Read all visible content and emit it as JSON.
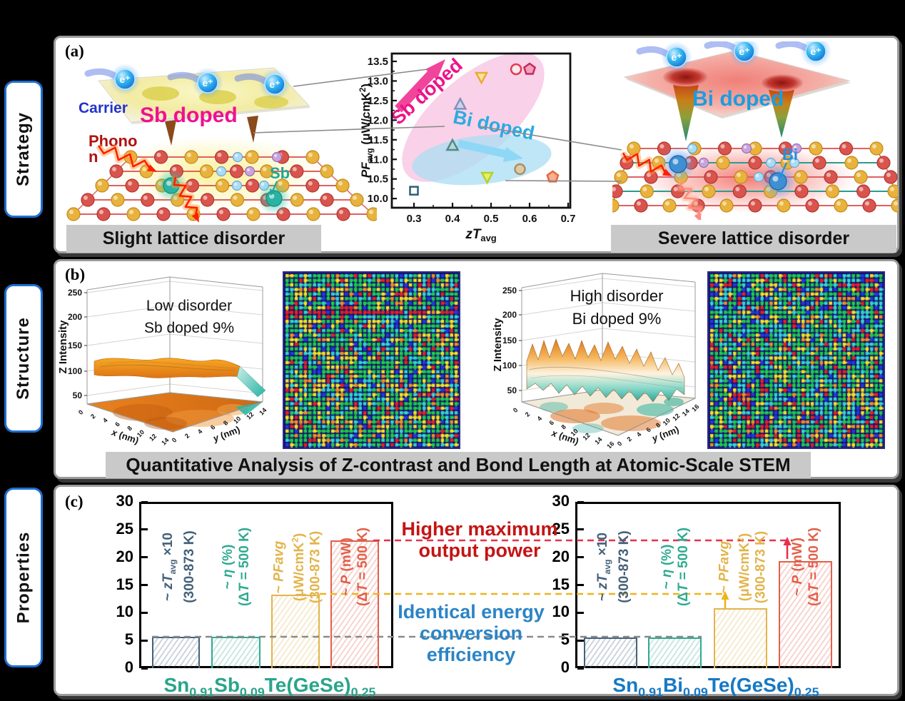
{
  "sidebar": {
    "accent": "#1d6fd1",
    "items": [
      {
        "label": "Strategy"
      },
      {
        "label": "Structure"
      },
      {
        "label": "Properties"
      }
    ]
  },
  "panel_a": {
    "tag": "(a)",
    "left": {
      "carrier": "Carrier",
      "carrier_color": "#2233cc",
      "doped": "Sb doped",
      "doped_color": "#f20f8e",
      "phonon_l1": "Phono",
      "phonon_l2": "n",
      "phonon_color": "#b01212",
      "dopant": "Sb",
      "dopant_color": "#1fa898",
      "electron": "e⁺",
      "banner": "Slight lattice disorder"
    },
    "right": {
      "doped": "Bi doped",
      "doped_color": "#1a9de0",
      "dopant": "Bi",
      "dopant_color": "#2090e0",
      "electron": "e⁺",
      "banner": "Severe lattice disorder"
    }
  },
  "panel_b": {
    "tag": "(b)",
    "banner": "Quantitative Analysis of Z-contrast and Bond Length at Atomic-Scale STEM"
  },
  "panel_c": {
    "tag": "(c)",
    "annotation_power": {
      "color": "#c41414",
      "lines": [
        "Higher maximum",
        "output power"
      ]
    },
    "annotation_efficiency": {
      "color": "#2b84c6",
      "lines": [
        "Identical energy",
        "conversion",
        "efficiency"
      ]
    }
  },
  "reference_lines": [
    {
      "value": 23.0,
      "color": "#e8304a"
    },
    {
      "value": 13.4,
      "color": "#eeb41e"
    },
    {
      "value": 5.7,
      "color": "#8a8a8a"
    }
  ],
  "chart_data": [
    {
      "id": "pf_vs_zt",
      "type": "scatter",
      "xlabel_rich": [
        {
          "t": "zT",
          "i": true
        },
        {
          "t": "avg",
          "sub": true
        }
      ],
      "ylabel_rich": [
        {
          "t": "PF",
          "i": true
        },
        {
          "t": "avg",
          "sub": true
        },
        {
          "t": " (μW/cmK"
        },
        {
          "t": "2",
          "sup": true
        },
        {
          "t": ")"
        }
      ],
      "xlim": [
        0.24,
        0.71
      ],
      "ylim": [
        9.75,
        13.7
      ],
      "grid": false,
      "xticks": [
        "0.3",
        "0.4",
        "0.5",
        "0.6",
        "0.7"
      ],
      "yticks": [
        "10.0",
        "10.5",
        "11.0",
        "11.5",
        "12.0",
        "12.5",
        "13.0",
        "13.5"
      ],
      "points": [
        {
          "x": 0.3,
          "y": 10.2,
          "shape": "square",
          "stroke": "#2e5f72",
          "fill": "#ffffff"
        },
        {
          "x": 0.4,
          "y": 11.35,
          "shape": "triangle-up",
          "stroke": "#4d8b8b",
          "fill": "#b9d6d3"
        },
        {
          "x": 0.42,
          "y": 12.4,
          "shape": "triangle-up",
          "stroke": "#8290bd",
          "fill": "#cdd4e9"
        },
        {
          "x": 0.475,
          "y": 13.1,
          "shape": "triangle-down",
          "stroke": "#eaaa3a",
          "fill": "#fbe39d"
        },
        {
          "x": 0.49,
          "y": 10.55,
          "shape": "triangle-down",
          "stroke": "#b8cf2e",
          "fill": "#e3f163"
        },
        {
          "x": 0.565,
          "y": 13.3,
          "shape": "circle",
          "stroke": "#e23a52",
          "fill": "#fbe9ec"
        },
        {
          "x": 0.6,
          "y": 13.3,
          "shape": "pentagon",
          "stroke": "#c22a5e",
          "fill": "#f2a0bd"
        },
        {
          "x": 0.575,
          "y": 10.75,
          "shape": "circle",
          "stroke": "#a98f68",
          "fill": "#e0c9a6"
        },
        {
          "x": 0.66,
          "y": 10.55,
          "shape": "pentagon",
          "stroke": "#e8643c",
          "fill": "#f8b18e"
        }
      ],
      "groups": [
        {
          "label": "Sb doped",
          "text_color": "#ee1289",
          "arrow_color": "#f0459b",
          "ellipse_color": "#f8c5e2"
        },
        {
          "label": "Bi doped",
          "text_color": "#29abe2",
          "arrow_color": "#8ed7f7",
          "ellipse_color": "#aaddf3"
        }
      ]
    },
    {
      "id": "surface_sb",
      "type": "surface",
      "disorder": "low",
      "title_lines": [
        "Low disorder",
        "Sb doped 9%"
      ],
      "zlabel": "Z Intensity",
      "z_range": [
        0,
        250
      ],
      "zticks": [
        "250",
        "200",
        "150",
        "100",
        "50"
      ],
      "xlabel_rich": [
        {
          "t": "x",
          "i": true
        },
        {
          "t": " (nm)"
        }
      ],
      "ylabel_rich": [
        {
          "t": "y",
          "i": true
        },
        {
          "t": " (nm)"
        }
      ],
      "xticks": [
        "0",
        "2",
        "4",
        "6",
        "8",
        "10",
        "12",
        "14"
      ],
      "yticks": [
        "0",
        "2",
        "4",
        "6",
        "8",
        "10",
        "12",
        "14"
      ]
    },
    {
      "id": "surface_bi",
      "type": "surface",
      "disorder": "high",
      "title_lines": [
        "High disorder",
        "Bi doped 9%"
      ],
      "zlabel": "Z Intensity",
      "z_range": [
        0,
        250
      ],
      "zticks": [
        "250",
        "200",
        "150",
        "100",
        "50"
      ],
      "xlabel_rich": [
        {
          "t": "x",
          "i": true
        },
        {
          "t": " (nm)"
        }
      ],
      "ylabel_rich": [
        {
          "t": "y",
          "i": true
        },
        {
          "t": " (nm)"
        }
      ],
      "xticks": [
        "0",
        "2",
        "4",
        "6",
        "8",
        "10",
        "12",
        "14",
        "16"
      ],
      "yticks": [
        "0",
        "2",
        "4",
        "6",
        "8",
        "10",
        "12",
        "14",
        "16"
      ]
    },
    {
      "id": "props_sb",
      "type": "bar",
      "ylim": [
        0,
        30
      ],
      "yticks": [
        "0",
        "5",
        "10",
        "15",
        "20",
        "25",
        "30"
      ],
      "category_rich": [
        {
          "t": "Sn"
        },
        {
          "t": "0.91",
          "sub": true
        },
        {
          "t": "Sb"
        },
        {
          "t": "0.09",
          "sub": true
        },
        {
          "t": "Te(GeSe)"
        },
        {
          "t": "0.25",
          "sub": true
        }
      ],
      "category_color": "#2aa58a",
      "bars": [
        {
          "value": 5.7,
          "color": "#44617a",
          "label_lines": [
            [
              {
                "t": "~ "
              },
              {
                "t": "zT",
                "i": true
              },
              {
                "t": "avg",
                "sub": true
              },
              {
                "t": " ×10"
              }
            ],
            [
              {
                "t": "(300-873 K)"
              }
            ]
          ]
        },
        {
          "value": 5.7,
          "color": "#2faa92",
          "label_lines": [
            [
              {
                "t": "~ "
              },
              {
                "t": "η",
                "i": true
              },
              {
                "t": "  (%)"
              }
            ],
            [
              {
                "t": "(Δ"
              },
              {
                "t": "T",
                "i": true
              },
              {
                "t": " = 500 K)"
              }
            ]
          ]
        },
        {
          "value": 13.3,
          "color": "#e2b44c",
          "label_lines": [
            [
              {
                "t": "~ "
              },
              {
                "t": "PF",
                "i": true
              },
              {
                "t": "avg",
                "i": true
              }
            ],
            [
              {
                "t": "(μW/cmK"
              },
              {
                "t": "2",
                "sup": true
              },
              {
                "t": ")"
              }
            ],
            [
              {
                "t": "(300-873 K)"
              }
            ]
          ]
        },
        {
          "value": 23.0,
          "color": "#e2604b",
          "label_lines": [
            [
              {
                "t": "~ "
              },
              {
                "t": "P",
                "i": true
              },
              {
                "t": " (mW)"
              }
            ],
            [
              {
                "t": "(Δ"
              },
              {
                "t": "T",
                "i": true
              },
              {
                "t": " = 500 K)"
              }
            ]
          ]
        }
      ]
    },
    {
      "id": "props_bi",
      "type": "bar",
      "ylim": [
        0,
        30
      ],
      "yticks": [
        "0",
        "5",
        "10",
        "15",
        "20",
        "25",
        "30"
      ],
      "category_rich": [
        {
          "t": "Sn"
        },
        {
          "t": "0.91",
          "sub": true
        },
        {
          "t": "Bi"
        },
        {
          "t": "0.09",
          "sub": true
        },
        {
          "t": "Te(GeSe)"
        },
        {
          "t": "0.25",
          "sub": true
        }
      ],
      "category_color": "#1779c4",
      "bars": [
        {
          "value": 5.6,
          "color": "#44617a",
          "label_lines": [
            [
              {
                "t": "~ "
              },
              {
                "t": "zT",
                "i": true
              },
              {
                "t": "avg",
                "sub": true
              },
              {
                "t": " ×10"
              }
            ],
            [
              {
                "t": "(300-873 K)"
              }
            ]
          ]
        },
        {
          "value": 5.6,
          "color": "#2faa92",
          "label_lines": [
            [
              {
                "t": "~ "
              },
              {
                "t": "η",
                "i": true
              },
              {
                "t": "  (%)"
              }
            ],
            [
              {
                "t": "(Δ"
              },
              {
                "t": "T",
                "i": true
              },
              {
                "t": " = 500 K)"
              }
            ]
          ]
        },
        {
          "value": 10.8,
          "color": "#e2b44c",
          "label_lines": [
            [
              {
                "t": "~ "
              },
              {
                "t": "PF",
                "i": true
              },
              {
                "t": "avg",
                "i": true
              }
            ],
            [
              {
                "t": "(μW/cmK"
              },
              {
                "t": "2",
                "sup": true
              },
              {
                "t": ")"
              }
            ],
            [
              {
                "t": "(300-873 K)"
              }
            ]
          ]
        },
        {
          "value": 19.3,
          "color": "#e2604b",
          "label_lines": [
            [
              {
                "t": "~ "
              },
              {
                "t": "P",
                "i": true
              },
              {
                "t": " (mW)"
              }
            ],
            [
              {
                "t": "(Δ"
              },
              {
                "t": "T",
                "i": true
              },
              {
                "t": " = 500 K)"
              }
            ]
          ]
        }
      ]
    }
  ]
}
